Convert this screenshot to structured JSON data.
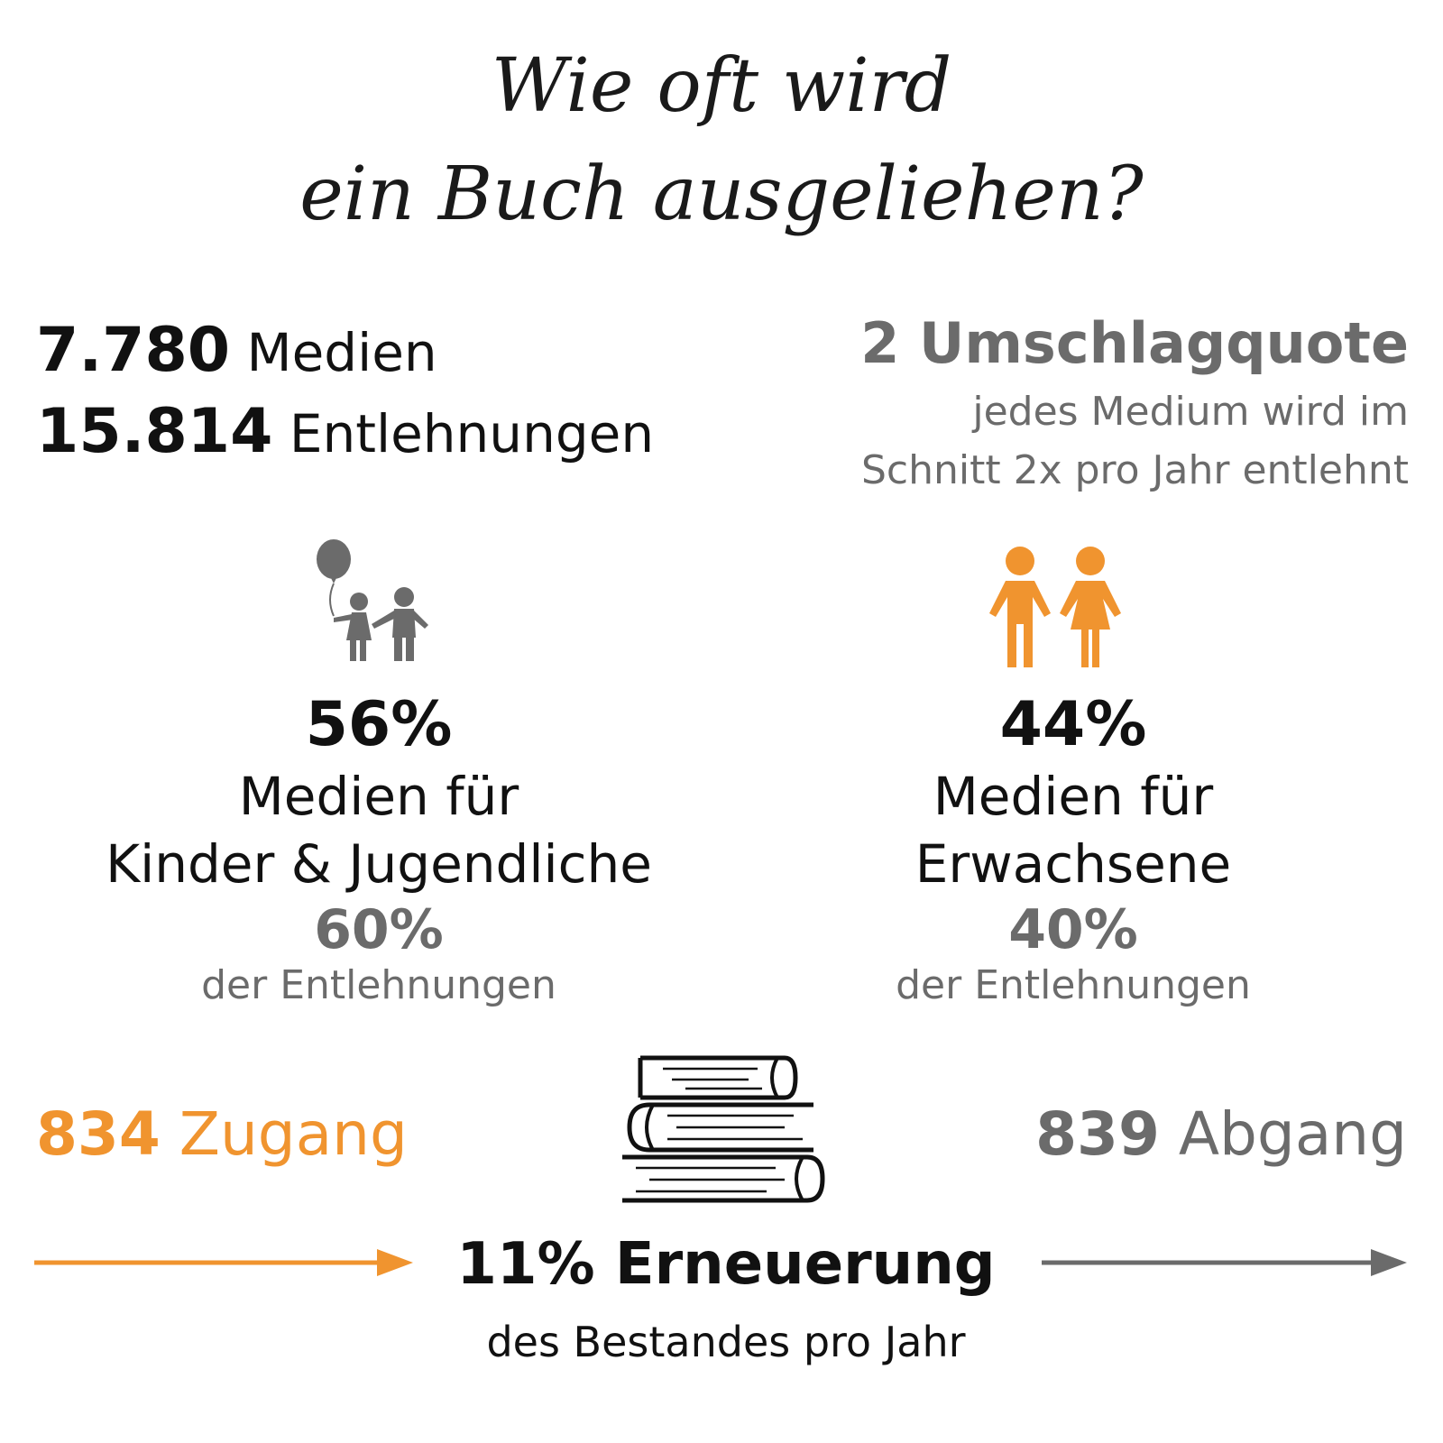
{
  "title": {
    "line1": "Wie oft wird",
    "line2": "ein Buch ausgeliehen?"
  },
  "stats": {
    "media_count": "7.780",
    "media_label": "Medien",
    "loans_count": "15.814",
    "loans_label": "Entlehnungen"
  },
  "turnover": {
    "value": "2",
    "label": "Umschlagquote",
    "desc_line1": "jedes Medium wird im",
    "desc_line2": "Schnitt 2x pro Jahr entlehnt"
  },
  "children": {
    "icon": "children-balloon-icon",
    "percent": "56%",
    "label_line1": "Medien für",
    "label_line2": "Kinder & Jugendliche",
    "loan_percent": "60%",
    "loan_label": "der Entlehnungen"
  },
  "adults": {
    "icon": "adults-icon",
    "percent": "44%",
    "label_line1": "Medien für",
    "label_line2": "Erwachsene",
    "loan_percent": "40%",
    "loan_label": "der Entlehnungen"
  },
  "intake": {
    "value": "834",
    "label": "Zugang"
  },
  "removal": {
    "value": "839",
    "label": "Abgang"
  },
  "renewal": {
    "icon": "book-stack-icon",
    "headline": "11% Erneuerung",
    "sub": "des Bestandes pro Jahr"
  },
  "colors": {
    "orange": "#f0942f",
    "gray": "#6b6b6b",
    "black": "#111111"
  }
}
